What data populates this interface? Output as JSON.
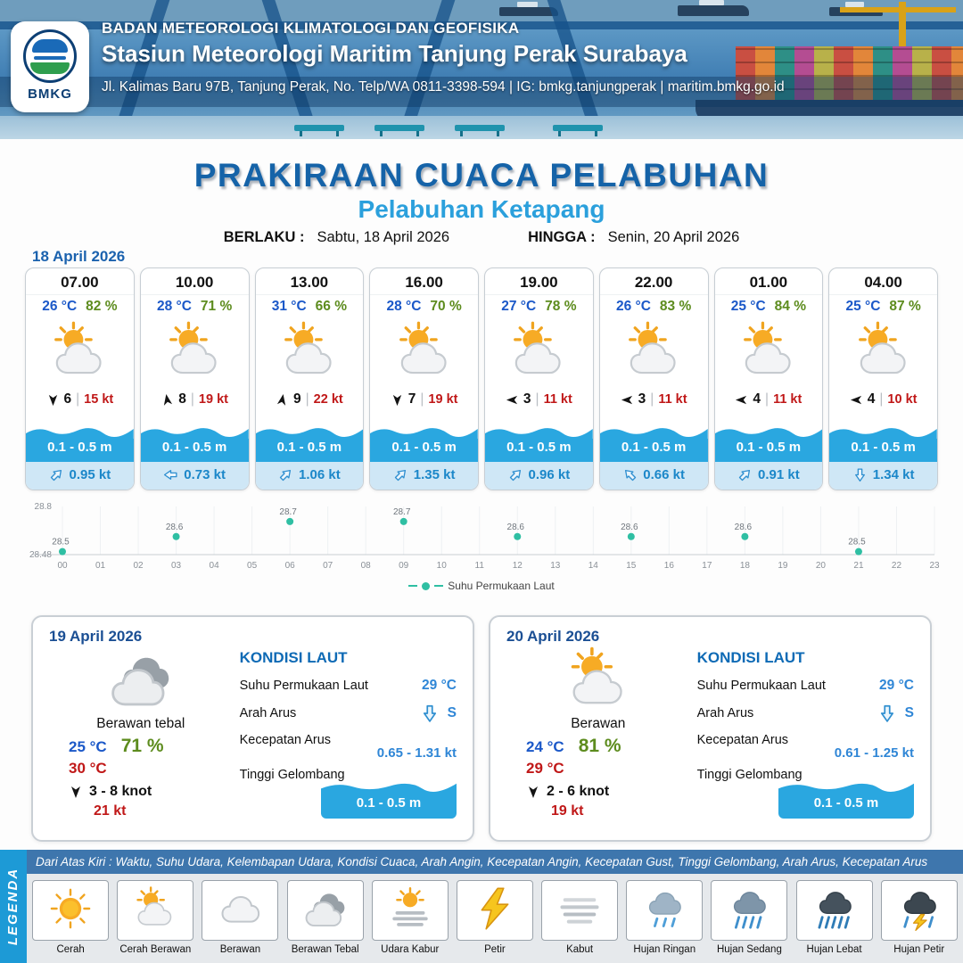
{
  "header": {
    "agency": "BADAN METEOROLOGI KLIMATOLOGI DAN GEOFISIKA",
    "station": "Stasiun Meteorologi Maritim Tanjung Perak Surabaya",
    "address": "Jl. Kalimas Baru 97B, Tanjung Perak, No. Telp/WA 0811-3398-594 | IG: bmkg.tanjungperak | maritim.bmkg.go.id",
    "logo_text": "BMKG"
  },
  "title": "PRAKIRAAN CUACA PELABUHAN",
  "subtitle": "Pelabuhan Ketapang",
  "validity": {
    "berlaku_label": "BERLAKU :",
    "berlaku_value": "Sabtu, 18 April 2026",
    "hingga_label": "HINGGA :",
    "hingga_value": "Senin, 20 April 2026"
  },
  "forecast_date": "18 April 2026",
  "colors": {
    "accent_blue": "#1563a8",
    "subtitle_blue": "#2ba0dc",
    "temp_blue": "#1b58c8",
    "humidity_green": "#5d8c1e",
    "gust_red": "#c01818",
    "wave_blue": "#2aa7e0",
    "sst_point_teal": "#2fbfa3"
  },
  "forecast_cards": [
    {
      "time": "07.00",
      "temp": "26 °C",
      "humidity": "82 %",
      "weather_icon": "icon-cerah-berawan",
      "wind_dir_deg": 180,
      "wind_speed": "6",
      "gust": "15 kt",
      "wave": "0.1 - 0.5 m",
      "current_dir_deg": 45,
      "current_speed": "0.95 kt"
    },
    {
      "time": "10.00",
      "temp": "28 °C",
      "humidity": "71 %",
      "weather_icon": "icon-cerah-berawan",
      "wind_dir_deg": 350,
      "wind_speed": "8",
      "gust": "19 kt",
      "wave": "0.1 - 0.5 m",
      "current_dir_deg": 270,
      "current_speed": "0.73 kt"
    },
    {
      "time": "13.00",
      "temp": "31 °C",
      "humidity": "66 %",
      "weather_icon": "icon-cerah-berawan",
      "wind_dir_deg": 10,
      "wind_speed": "9",
      "gust": "22 kt",
      "wave": "0.1 - 0.5 m",
      "current_dir_deg": 45,
      "current_speed": "1.06 kt"
    },
    {
      "time": "16.00",
      "temp": "28 °C",
      "humidity": "70 %",
      "weather_icon": "icon-cerah-berawan",
      "wind_dir_deg": 180,
      "wind_speed": "7",
      "gust": "19 kt",
      "wave": "0.1 - 0.5 m",
      "current_dir_deg": 45,
      "current_speed": "1.35 kt"
    },
    {
      "time": "19.00",
      "temp": "27 °C",
      "humidity": "78 %",
      "weather_icon": "icon-cerah-berawan",
      "wind_dir_deg": 270,
      "wind_speed": "3",
      "gust": "11 kt",
      "wave": "0.1 - 0.5 m",
      "current_dir_deg": 45,
      "current_speed": "0.96 kt"
    },
    {
      "time": "22.00",
      "temp": "26 °C",
      "humidity": "83 %",
      "weather_icon": "icon-cerah-berawan",
      "wind_dir_deg": 270,
      "wind_speed": "3",
      "gust": "11 kt",
      "wave": "0.1 - 0.5 m",
      "current_dir_deg": 315,
      "current_speed": "0.66 kt"
    },
    {
      "time": "01.00",
      "temp": "25 °C",
      "humidity": "84 %",
      "weather_icon": "icon-cerah-berawan",
      "wind_dir_deg": 270,
      "wind_speed": "4",
      "gust": "11 kt",
      "wave": "0.1 - 0.5 m",
      "current_dir_deg": 45,
      "current_speed": "0.91 kt"
    },
    {
      "time": "04.00",
      "temp": "25 °C",
      "humidity": "87 %",
      "weather_icon": "icon-cerah-berawan",
      "wind_dir_deg": 270,
      "wind_speed": "4",
      "gust": "10 kt",
      "wave": "0.1 - 0.5 m",
      "current_dir_deg": 180,
      "current_speed": "1.34 kt"
    }
  ],
  "chart_data": {
    "type": "scatter",
    "series": [
      {
        "name": "Suhu Permukaan Laut",
        "x": [
          0,
          3,
          6,
          9,
          12,
          15,
          18,
          21
        ],
        "y": [
          28.5,
          28.6,
          28.7,
          28.7,
          28.6,
          28.6,
          28.6,
          28.5
        ]
      }
    ],
    "x_ticks": [
      "00",
      "01",
      "02",
      "03",
      "04",
      "05",
      "06",
      "07",
      "08",
      "09",
      "10",
      "11",
      "12",
      "13",
      "14",
      "15",
      "16",
      "17",
      "18",
      "19",
      "20",
      "21",
      "22",
      "23"
    ],
    "ylim": [
      28.48,
      28.8
    ],
    "y_axis_labels": [
      "28.8",
      "28.48"
    ],
    "point_color": "#2fbfa3",
    "legend_position": "bottom",
    "grid": true
  },
  "day_cards": [
    {
      "date": "19 April 2026",
      "icon": "icon-berawan-tebal",
      "condition": "Berawan tebal",
      "temp_min": "25 °C",
      "humidity": "71 %",
      "temp_max": "30 °C",
      "wind_dir_deg": 180,
      "wind_range": "3 - 8 knot",
      "gust": "21 kt",
      "sea": {
        "title": "KONDISI LAUT",
        "sst_label": "Suhu Permukaan Laut",
        "sst": "29 °C",
        "current_dir_label": "Arah Arus",
        "current_dir_deg": 180,
        "current_dir": "S",
        "current_speed_label": "Kecepatan Arus",
        "current_speed": "0.65 - 1.31 kt",
        "wave_label": "Tinggi Gelombang",
        "wave": "0.1 - 0.5 m"
      }
    },
    {
      "date": "20 April 2026",
      "icon": "icon-cerah-berawan",
      "condition": "Berawan",
      "temp_min": "24 °C",
      "humidity": "81 %",
      "temp_max": "29 °C",
      "wind_dir_deg": 180,
      "wind_range": "2 - 6 knot",
      "gust": "19 kt",
      "sea": {
        "title": "KONDISI LAUT",
        "sst_label": "Suhu Permukaan Laut",
        "sst": "29 °C",
        "current_dir_label": "Arah Arus",
        "current_dir_deg": 180,
        "current_dir": "S",
        "current_speed_label": "Kecepatan Arus",
        "current_speed": "0.61 - 1.25 kt",
        "wave_label": "Tinggi Gelombang",
        "wave": "0.1 - 0.5 m"
      }
    }
  ],
  "legend": {
    "side_label": "LEGENDA",
    "description": "Dari Atas Kiri : Waktu, Suhu Udara, Kelembapan Udara, Kondisi Cuaca, Arah Angin, Kecepatan Angin, Kecepatan Gust, Tinggi Gelombang, Arah Arus, Kecepatan Arus",
    "items": [
      {
        "label": "Cerah",
        "icon": "icon-cerah"
      },
      {
        "label": "Cerah Berawan",
        "icon": "icon-cerah-berawan"
      },
      {
        "label": "Berawan",
        "icon": "icon-berawan"
      },
      {
        "label": "Berawan Tebal",
        "icon": "icon-berawan-tebal"
      },
      {
        "label": "Udara Kabur",
        "icon": "icon-udara-kabur"
      },
      {
        "label": "Petir",
        "icon": "icon-petir"
      },
      {
        "label": "Kabut",
        "icon": "icon-kabut"
      },
      {
        "label": "Hujan Ringan",
        "icon": "icon-hujan-ringan"
      },
      {
        "label": "Hujan Sedang",
        "icon": "icon-hujan-sedang"
      },
      {
        "label": "Hujan Lebat",
        "icon": "icon-hujan-lebat"
      },
      {
        "label": "Hujan Petir",
        "icon": "icon-hujan-petir"
      }
    ]
  }
}
